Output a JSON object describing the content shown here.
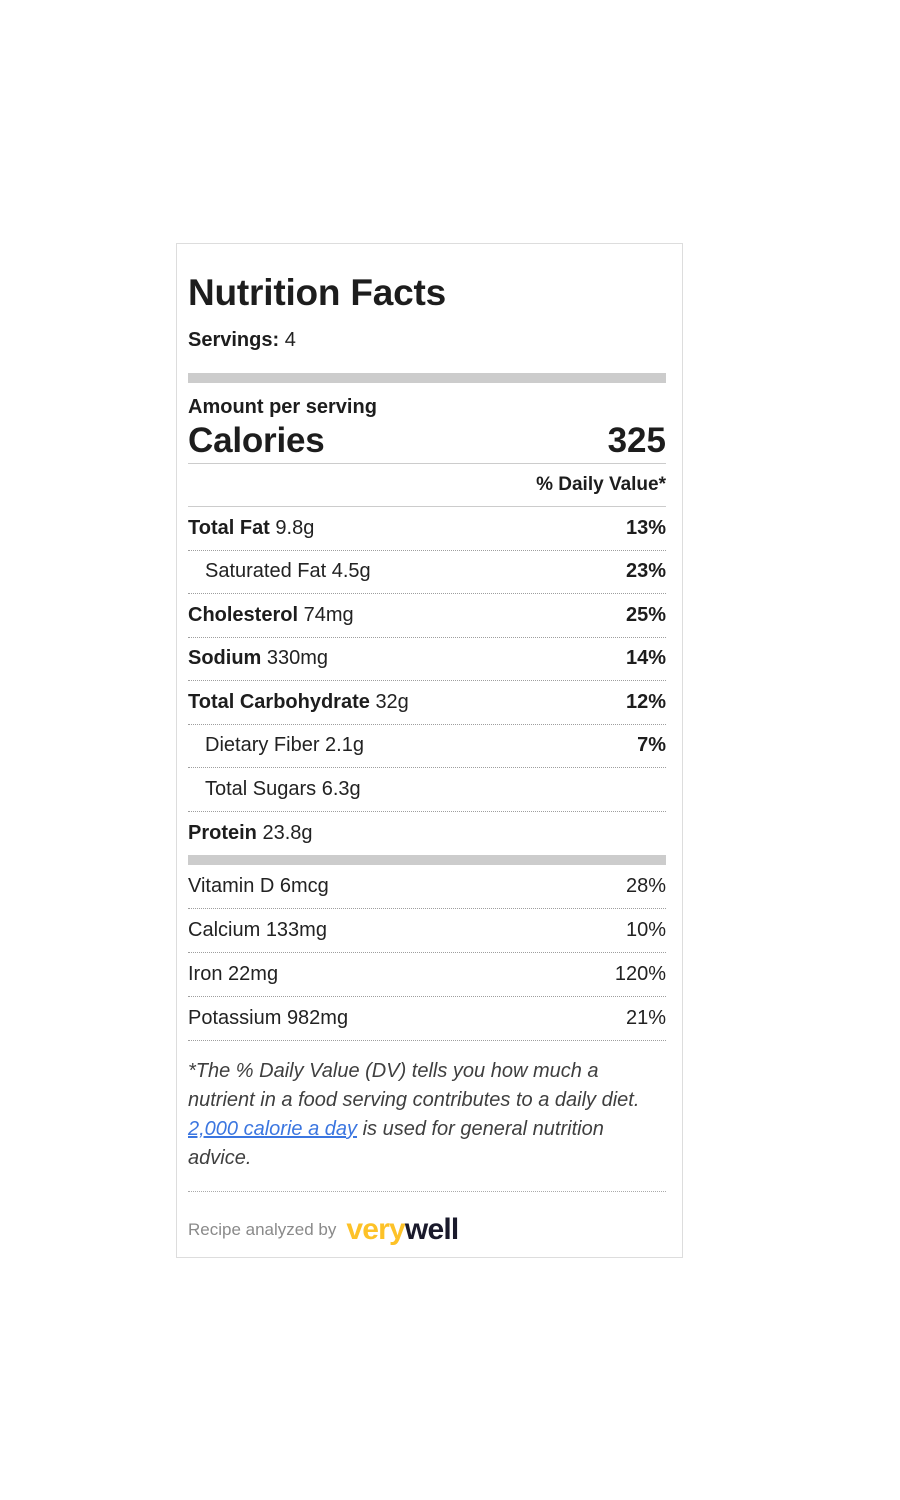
{
  "label": {
    "title": "Nutrition Facts",
    "servings": {
      "label": "Servings:",
      "value": "4"
    },
    "amount_per_serving": "Amount per serving",
    "calories": {
      "label": "Calories",
      "value": "325"
    },
    "daily_value_header": "% Daily Value*",
    "nutrients": [
      {
        "name": "Total Fat",
        "amount": "9.8g",
        "dv": "13%"
      },
      {
        "name": "Saturated Fat",
        "amount": "4.5g",
        "dv": "23%"
      },
      {
        "name": "Cholesterol",
        "amount": "74mg",
        "dv": "25%"
      },
      {
        "name": "Sodium",
        "amount": "330mg",
        "dv": "14%"
      },
      {
        "name": "Total Carbohydrate",
        "amount": "32g",
        "dv": "12%"
      },
      {
        "name": "Dietary Fiber",
        "amount": "2.1g",
        "dv": "7%"
      },
      {
        "name": "Total Sugars",
        "amount": "6.3g",
        "dv": ""
      },
      {
        "name": "Protein",
        "amount": "23.8g",
        "dv": ""
      }
    ],
    "vitamins": [
      {
        "name": "Vitamin D",
        "amount": "6mcg",
        "dv": "28%"
      },
      {
        "name": "Calcium",
        "amount": "133mg",
        "dv": "10%"
      },
      {
        "name": "Iron",
        "amount": "22mg",
        "dv": "120%"
      },
      {
        "name": "Potassium",
        "amount": "982mg",
        "dv": "21%"
      }
    ],
    "footnote": {
      "part1": "*The % Daily Value (DV) tells you how much a nutrient in a food serving contributes to a daily diet. ",
      "link_text": "2,000 calorie a day",
      "part2": " is used for general nutrition advice."
    },
    "attribution": {
      "prefix": "Recipe analyzed by",
      "brand_part1": "very",
      "brand_part2": "well"
    },
    "colors": {
      "link_blue": "#3b76e0",
      "brand_yellow": "#fdc228",
      "brand_dark": "#1a1a2b",
      "bar_gray": "#cccccc"
    }
  }
}
